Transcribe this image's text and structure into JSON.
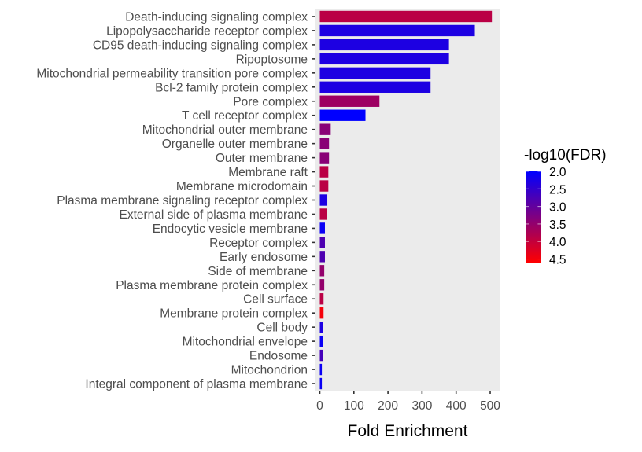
{
  "chart_data": {
    "type": "bar",
    "orientation": "horizontal",
    "title": "",
    "xlabel": "Fold Enrichment",
    "ylabel": "",
    "xlim": [
      -15,
      530
    ],
    "xticks": [
      0,
      100,
      200,
      300,
      400,
      500
    ],
    "grid": false,
    "panel_background": "#ebebeb",
    "categories": [
      "Death-inducing signaling complex",
      "Lipopolysaccharide receptor complex",
      "CD95 death-inducing signaling complex",
      "Ripoptosome",
      "Mitochondrial permeability transition pore complex",
      "Bcl-2 family protein complex",
      "Pore complex",
      "T cell receptor complex",
      "Mitochondrial outer membrane",
      "Organelle outer membrane",
      "Outer membrane",
      "Membrane raft",
      "Membrane microdomain",
      "Plasma membrane signaling receptor complex",
      "External side of plasma membrane",
      "Endocytic vesicle membrane",
      "Receptor complex",
      "Early endosome",
      "Side of membrane",
      "Plasma membrane protein complex",
      "Cell surface",
      "Membrane protein complex",
      "Cell body",
      "Mitochondrial envelope",
      "Endosome",
      "Mitochondrion",
      "Integral component of plasma membrane"
    ],
    "values": [
      505,
      455,
      379,
      379,
      325,
      325,
      175,
      134,
      32,
      27,
      27,
      25,
      25,
      22,
      21,
      15,
      15,
      15,
      13,
      13,
      11,
      11,
      10,
      9,
      9,
      6,
      6
    ],
    "color_values": [
      3.9,
      2.3,
      2.3,
      2.3,
      2.3,
      2.3,
      3.6,
      2.0,
      3.4,
      3.4,
      3.4,
      3.9,
      3.9,
      2.3,
      3.9,
      2.1,
      2.8,
      2.8,
      3.5,
      3.5,
      3.9,
      4.5,
      2.3,
      2.1,
      2.7,
      2.1,
      2.1
    ],
    "legend": {
      "title": "-log10(FDR)",
      "type": "colorbar",
      "placement": "right",
      "range": [
        2.0,
        4.6
      ],
      "breaks": [
        "2.0",
        "2.5",
        "3.0",
        "3.5",
        "4.0",
        "4.5"
      ],
      "low_color": "#0000ff",
      "high_color": "#ff0000"
    }
  }
}
